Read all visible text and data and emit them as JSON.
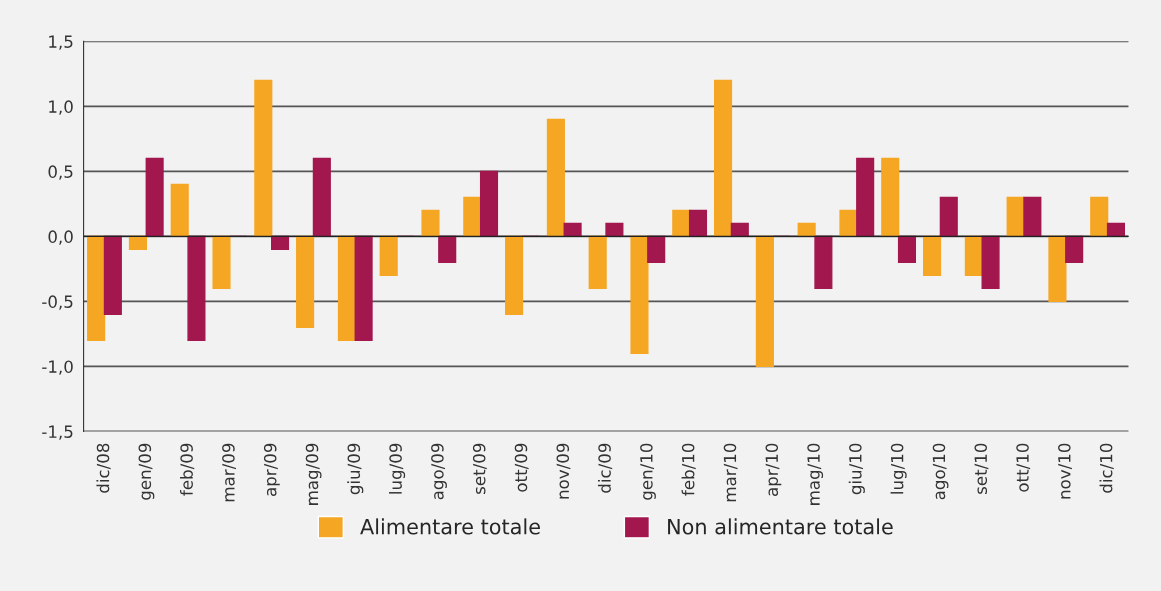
{
  "chart_data": {
    "type": "bar",
    "categories": [
      "dic/08",
      "gen/09",
      "feb/09",
      "mar/09",
      "apr/09",
      "mag/09",
      "giu/09",
      "lug/09",
      "ago/09",
      "set/09",
      "ott/09",
      "nov/09",
      "dic/09",
      "gen/10",
      "feb/10",
      "mar/10",
      "apr/10",
      "mag/10",
      "giu/10",
      "lug/10",
      "ago/10",
      "set/10",
      "ott/10",
      "nov/10",
      "dic/10"
    ],
    "series": [
      {
        "name": "Alimentare totale",
        "color": "#f5a623",
        "values": [
          -0.8,
          -0.1,
          0.4,
          -0.4,
          1.2,
          -0.7,
          -0.8,
          -0.3,
          0.2,
          0.3,
          -0.6,
          0.9,
          -0.4,
          -0.9,
          0.2,
          1.2,
          -1.0,
          0.1,
          0.2,
          0.6,
          -0.3,
          -0.3,
          0.3,
          -0.5,
          0.3
        ]
      },
      {
        "name": "Non alimentare totale",
        "color": "#a3174f",
        "values": [
          -0.6,
          0.6,
          -0.8,
          0.0,
          -0.1,
          0.6,
          -0.8,
          0.0,
          -0.2,
          0.5,
          0.0,
          0.1,
          0.1,
          -0.2,
          0.2,
          0.1,
          0.0,
          -0.4,
          0.6,
          -0.2,
          0.3,
          -0.4,
          0.3,
          -0.2,
          0.1
        ]
      }
    ],
    "ylim": [
      -1.5,
      1.5
    ],
    "yticks": [
      {
        "value": -1.5,
        "label": "-1,5"
      },
      {
        "value": -1.0,
        "label": "-1,0"
      },
      {
        "value": -0.5,
        "label": "-0,5"
      },
      {
        "value": 0.0,
        "label": "0,0"
      },
      {
        "value": 0.5,
        "label": "0,5"
      },
      {
        "value": 1.0,
        "label": "1,0"
      },
      {
        "value": 1.5,
        "label": "1,5"
      }
    ],
    "grid": "y",
    "legend": "bottom"
  }
}
